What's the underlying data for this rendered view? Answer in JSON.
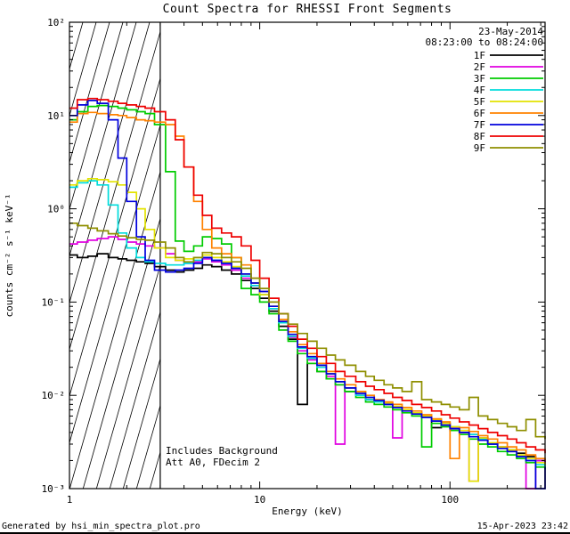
{
  "title": "Count Spectra for RHESSI Front Segments",
  "annotations": {
    "date": "23-May-2014",
    "time_range": "08:23:00 to 08:24:00",
    "background_note": "Includes Background",
    "attenuator_note": "Att A0, FDecim 2"
  },
  "footer": {
    "left": "Generated by hsi_min_spectra_plot.pro",
    "right": "15-Apr-2023 23:42"
  },
  "chart_data": {
    "type": "line",
    "mode": "histogram-step",
    "xscale": "log",
    "yscale": "log",
    "xlabel": "Energy (keV)",
    "ylabel": "counts cm⁻² s⁻¹ keV⁻¹",
    "xlim": [
      1,
      316
    ],
    "ylim": [
      0.001,
      100
    ],
    "grid": false,
    "legend_position": "top-right",
    "x_ticks": [
      {
        "v": 1,
        "label": "1"
      },
      {
        "v": 10,
        "label": "10"
      },
      {
        "v": 100,
        "label": "100"
      }
    ],
    "y_ticks": [
      {
        "v": 0.001,
        "label": "10⁻³"
      },
      {
        "v": 0.01,
        "label": "10⁻²"
      },
      {
        "v": 0.1,
        "label": "10⁻¹"
      },
      {
        "v": 1,
        "label": "10⁰"
      },
      {
        "v": 10,
        "label": "10¹"
      },
      {
        "v": 100,
        "label": "10²"
      }
    ],
    "hatched_region": {
      "xmin": 1,
      "xmax": 3,
      "style": "diagonal-hatch"
    },
    "x": [
      1.0,
      1.1,
      1.25,
      1.4,
      1.6,
      1.8,
      2.0,
      2.25,
      2.5,
      2.8,
      3.2,
      3.6,
      4.0,
      4.5,
      5.0,
      5.6,
      6.3,
      7.1,
      8.0,
      9.0,
      10,
      11.2,
      12.6,
      14.1,
      15.8,
      17.8,
      20,
      22.4,
      25,
      28,
      32,
      36,
      40,
      45,
      50,
      56,
      63,
      71,
      80,
      90,
      100,
      112,
      126,
      141,
      158,
      178,
      200,
      224,
      251,
      282,
      316
    ],
    "series": [
      {
        "name": "1F",
        "color": "#000000",
        "values": [
          0.32,
          0.3,
          0.31,
          0.33,
          0.3,
          0.29,
          0.28,
          0.27,
          0.26,
          0.24,
          0.22,
          0.21,
          0.22,
          0.23,
          0.25,
          0.24,
          0.22,
          0.2,
          0.17,
          0.14,
          0.11,
          0.08,
          0.055,
          0.04,
          0.008,
          0.022,
          0.018,
          0.015,
          0.013,
          0.011,
          0.01,
          0.009,
          0.0085,
          0.008,
          0.0075,
          0.007,
          0.0065,
          0.006,
          0.0045,
          0.005,
          0.0042,
          0.004,
          0.0038,
          0.0035,
          0.003,
          0.0028,
          0.0026,
          0.0024,
          0.0022,
          0.002,
          0.0019
        ]
      },
      {
        "name": "2F",
        "color": "#e100e1",
        "values": [
          0.42,
          0.44,
          0.46,
          0.48,
          0.5,
          0.47,
          0.44,
          0.42,
          0.4,
          0.38,
          0.33,
          0.28,
          0.26,
          0.27,
          0.29,
          0.27,
          0.25,
          0.22,
          0.18,
          0.15,
          0.12,
          0.085,
          0.06,
          0.042,
          0.03,
          0.024,
          0.02,
          0.016,
          0.003,
          0.012,
          0.01,
          0.009,
          0.0085,
          0.008,
          0.0035,
          0.007,
          0.0065,
          0.006,
          0.0055,
          0.005,
          0.0045,
          0.004,
          0.0012,
          0.0035,
          0.003,
          0.0028,
          0.0025,
          0.0022,
          0.0008,
          0.002,
          0.0018
        ]
      },
      {
        "name": "3F",
        "color": "#00cc00",
        "values": [
          9.0,
          11.0,
          12.5,
          12.8,
          12.5,
          12.0,
          11.5,
          11.0,
          10.5,
          8.0,
          2.5,
          0.45,
          0.35,
          0.4,
          0.5,
          0.48,
          0.42,
          0.3,
          0.14,
          0.12,
          0.1,
          0.075,
          0.05,
          0.038,
          0.028,
          0.022,
          0.018,
          0.015,
          0.013,
          0.011,
          0.0095,
          0.0085,
          0.008,
          0.0075,
          0.007,
          0.0065,
          0.006,
          0.0028,
          0.005,
          0.0046,
          0.0042,
          0.0038,
          0.0034,
          0.003,
          0.0028,
          0.0025,
          0.0023,
          0.0021,
          0.0019,
          0.0017,
          0.0016
        ]
      },
      {
        "name": "4F",
        "color": "#00dcdc",
        "values": [
          1.7,
          1.9,
          2.0,
          1.8,
          1.1,
          0.55,
          0.38,
          0.3,
          0.27,
          0.26,
          0.25,
          0.25,
          0.26,
          0.28,
          0.3,
          0.28,
          0.26,
          0.23,
          0.19,
          0.15,
          0.12,
          0.085,
          0.06,
          0.043,
          0.032,
          0.025,
          0.02,
          0.017,
          0.014,
          0.012,
          0.01,
          0.009,
          0.0085,
          0.008,
          0.0075,
          0.007,
          0.0065,
          0.006,
          0.0055,
          0.005,
          0.0046,
          0.0042,
          0.0038,
          0.0034,
          0.003,
          0.0027,
          0.0025,
          0.0022,
          0.002,
          0.0018,
          0.0017
        ]
      },
      {
        "name": "5F",
        "color": "#e3e300",
        "values": [
          1.8,
          2.0,
          2.1,
          2.05,
          1.95,
          1.8,
          1.5,
          1.0,
          0.6,
          0.38,
          0.3,
          0.28,
          0.29,
          0.3,
          0.32,
          0.3,
          0.27,
          0.24,
          0.2,
          0.16,
          0.12,
          0.09,
          0.062,
          0.045,
          0.033,
          0.026,
          0.021,
          0.017,
          0.014,
          0.012,
          0.011,
          0.0095,
          0.0088,
          0.0082,
          0.0076,
          0.007,
          0.0065,
          0.006,
          0.0055,
          0.005,
          0.0046,
          0.0042,
          0.0012,
          0.0035,
          0.0031,
          0.0028,
          0.0026,
          0.0023,
          0.0021,
          0.0019,
          0.0018
        ]
      },
      {
        "name": "6F",
        "color": "#ff8200",
        "values": [
          8.5,
          10.5,
          10.8,
          10.5,
          10.2,
          10.0,
          9.5,
          9.0,
          8.8,
          8.5,
          8.0,
          6.0,
          2.8,
          1.2,
          0.6,
          0.38,
          0.33,
          0.3,
          0.25,
          0.18,
          0.13,
          0.09,
          0.065,
          0.048,
          0.035,
          0.028,
          0.022,
          0.018,
          0.015,
          0.013,
          0.011,
          0.01,
          0.009,
          0.0085,
          0.008,
          0.0074,
          0.0068,
          0.0062,
          0.0056,
          0.0052,
          0.0021,
          0.0045,
          0.0041,
          0.0037,
          0.0034,
          0.0031,
          0.0028,
          0.0026,
          0.0023,
          0.0021,
          0.002
        ]
      },
      {
        "name": "7F",
        "color": "#0000dd",
        "values": [
          10.0,
          13.0,
          14.5,
          13.5,
          9.0,
          3.5,
          1.2,
          0.5,
          0.28,
          0.22,
          0.21,
          0.22,
          0.23,
          0.26,
          0.3,
          0.28,
          0.26,
          0.23,
          0.2,
          0.16,
          0.13,
          0.09,
          0.062,
          0.045,
          0.033,
          0.026,
          0.021,
          0.017,
          0.014,
          0.012,
          0.0105,
          0.0095,
          0.0088,
          0.008,
          0.0074,
          0.0068,
          0.0063,
          0.0058,
          0.0053,
          0.0048,
          0.0044,
          0.004,
          0.0036,
          0.0033,
          0.003,
          0.0027,
          0.0025,
          0.0022,
          0.002,
          0.0009,
          0.0017
        ]
      },
      {
        "name": "8F",
        "color": "#ee0000",
        "values": [
          12.0,
          14.8,
          15.2,
          14.8,
          14.2,
          13.5,
          13.0,
          12.5,
          12.0,
          11.0,
          9.0,
          5.5,
          2.8,
          1.4,
          0.85,
          0.62,
          0.55,
          0.5,
          0.4,
          0.28,
          0.18,
          0.11,
          0.075,
          0.055,
          0.04,
          0.032,
          0.026,
          0.022,
          0.018,
          0.016,
          0.014,
          0.0125,
          0.0115,
          0.0105,
          0.0095,
          0.0088,
          0.008,
          0.0074,
          0.0068,
          0.0062,
          0.0057,
          0.0052,
          0.0048,
          0.0044,
          0.004,
          0.0037,
          0.0034,
          0.0031,
          0.0028,
          0.0026,
          0.0024
        ]
      },
      {
        "name": "9F",
        "color": "#8f8f00",
        "values": [
          0.7,
          0.66,
          0.62,
          0.58,
          0.54,
          0.51,
          0.49,
          0.47,
          0.46,
          0.44,
          0.38,
          0.3,
          0.27,
          0.3,
          0.34,
          0.33,
          0.3,
          0.27,
          0.23,
          0.18,
          0.14,
          0.1,
          0.075,
          0.058,
          0.046,
          0.038,
          0.032,
          0.027,
          0.024,
          0.021,
          0.018,
          0.016,
          0.0145,
          0.013,
          0.012,
          0.011,
          0.014,
          0.009,
          0.0085,
          0.008,
          0.0075,
          0.007,
          0.0095,
          0.006,
          0.0055,
          0.005,
          0.0046,
          0.0042,
          0.0055,
          0.0036,
          0.0034
        ]
      }
    ]
  }
}
